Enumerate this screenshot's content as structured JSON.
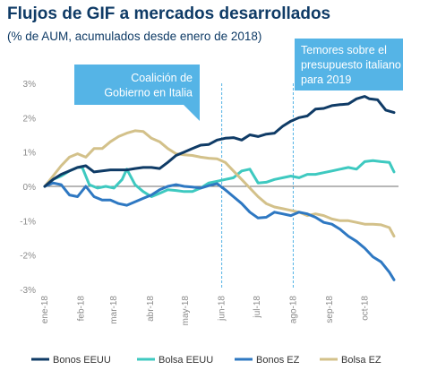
{
  "title": "Flujos de GIF a mercados desarrollados",
  "subtitle": "(% de AUM, acumulados desde enero de 2018)",
  "colors": {
    "bonos_eeuu": "#0f3b66",
    "bolsa_eeuu": "#3ec9c0",
    "bonos_ez": "#2e78c2",
    "bolsa_ez": "#d3c18a",
    "annotation": "#55b4e6",
    "axis_text": "#8a8a8a",
    "title": "#0f3b66"
  },
  "chart_data": {
    "type": "line",
    "title": "Flujos de GIF a mercados desarrollados",
    "subtitle": "(% de AUM, acumulados desde enero de 2018)",
    "xlabel": "",
    "ylabel": "",
    "ylim": [
      -3,
      3
    ],
    "y_ticks": [
      "3%",
      "2%",
      "1%",
      "0%",
      "-1%",
      "-2%",
      "-3%"
    ],
    "y_tick_values": [
      3,
      2,
      1,
      0,
      -1,
      -2,
      -3
    ],
    "categories": [
      "ene-18",
      "feb-18",
      "mar-18",
      "abr-18",
      "may-18",
      "jun-18",
      "jul-18",
      "ago-18",
      "sep-18",
      "oct-18"
    ],
    "x_start": "2018-01-01",
    "x_end": "2018-10-26",
    "grid": false,
    "legend_position": "bottom",
    "series": [
      {
        "name": "Bonos EEUU",
        "color_key": "bonos_eeuu",
        "points": [
          [
            "2018-01-01",
            0.0
          ],
          [
            "2018-01-08",
            0.2
          ],
          [
            "2018-01-15",
            0.35
          ],
          [
            "2018-01-22",
            0.45
          ],
          [
            "2018-01-29",
            0.55
          ],
          [
            "2018-02-05",
            0.6
          ],
          [
            "2018-02-12",
            0.42
          ],
          [
            "2018-02-19",
            0.45
          ],
          [
            "2018-02-26",
            0.48
          ],
          [
            "2018-03-05",
            0.48
          ],
          [
            "2018-03-12",
            0.48
          ],
          [
            "2018-03-19",
            0.52
          ],
          [
            "2018-03-26",
            0.55
          ],
          [
            "2018-04-02",
            0.55
          ],
          [
            "2018-04-09",
            0.52
          ],
          [
            "2018-04-16",
            0.7
          ],
          [
            "2018-04-23",
            0.9
          ],
          [
            "2018-04-30",
            1.0
          ],
          [
            "2018-05-07",
            1.1
          ],
          [
            "2018-05-14",
            1.2
          ],
          [
            "2018-05-21",
            1.22
          ],
          [
            "2018-05-28",
            1.35
          ],
          [
            "2018-06-04",
            1.4
          ],
          [
            "2018-06-11",
            1.42
          ],
          [
            "2018-06-18",
            1.35
          ],
          [
            "2018-06-25",
            1.5
          ],
          [
            "2018-07-02",
            1.45
          ],
          [
            "2018-07-09",
            1.52
          ],
          [
            "2018-07-16",
            1.55
          ],
          [
            "2018-07-23",
            1.75
          ],
          [
            "2018-07-30",
            1.9
          ],
          [
            "2018-08-06",
            2.0
          ],
          [
            "2018-08-13",
            2.05
          ],
          [
            "2018-08-20",
            2.25
          ],
          [
            "2018-08-27",
            2.27
          ],
          [
            "2018-09-03",
            2.35
          ],
          [
            "2018-09-10",
            2.38
          ],
          [
            "2018-09-17",
            2.4
          ],
          [
            "2018-09-24",
            2.55
          ],
          [
            "2018-10-01",
            2.62
          ],
          [
            "2018-10-05",
            2.55
          ],
          [
            "2018-10-12",
            2.52
          ],
          [
            "2018-10-19",
            2.22
          ],
          [
            "2018-10-26",
            2.15
          ]
        ]
      },
      {
        "name": "Bolsa EEUU",
        "color_key": "bolsa_eeuu",
        "points": [
          [
            "2018-01-01",
            0.0
          ],
          [
            "2018-01-08",
            0.2
          ],
          [
            "2018-01-15",
            0.3
          ],
          [
            "2018-01-22",
            0.45
          ],
          [
            "2018-01-29",
            0.55
          ],
          [
            "2018-02-02",
            0.55
          ],
          [
            "2018-02-08",
            0.05
          ],
          [
            "2018-02-15",
            -0.05
          ],
          [
            "2018-02-22",
            0.0
          ],
          [
            "2018-03-01",
            -0.05
          ],
          [
            "2018-03-08",
            0.2
          ],
          [
            "2018-03-12",
            0.5
          ],
          [
            "2018-03-19",
            0.05
          ],
          [
            "2018-03-26",
            -0.15
          ],
          [
            "2018-04-02",
            -0.3
          ],
          [
            "2018-04-09",
            -0.2
          ],
          [
            "2018-04-16",
            -0.1
          ],
          [
            "2018-04-23",
            -0.12
          ],
          [
            "2018-04-30",
            -0.15
          ],
          [
            "2018-05-07",
            -0.15
          ],
          [
            "2018-05-14",
            -0.05
          ],
          [
            "2018-05-21",
            0.1
          ],
          [
            "2018-05-28",
            0.15
          ],
          [
            "2018-06-04",
            0.2
          ],
          [
            "2018-06-11",
            0.25
          ],
          [
            "2018-06-18",
            0.45
          ],
          [
            "2018-06-25",
            0.5
          ],
          [
            "2018-07-02",
            0.1
          ],
          [
            "2018-07-09",
            0.12
          ],
          [
            "2018-07-16",
            0.2
          ],
          [
            "2018-07-23",
            0.25
          ],
          [
            "2018-07-30",
            0.3
          ],
          [
            "2018-08-06",
            0.25
          ],
          [
            "2018-08-13",
            0.35
          ],
          [
            "2018-08-20",
            0.35
          ],
          [
            "2018-08-27",
            0.4
          ],
          [
            "2018-09-03",
            0.45
          ],
          [
            "2018-09-10",
            0.5
          ],
          [
            "2018-09-17",
            0.55
          ],
          [
            "2018-09-24",
            0.5
          ],
          [
            "2018-10-01",
            0.72
          ],
          [
            "2018-10-08",
            0.75
          ],
          [
            "2018-10-15",
            0.72
          ],
          [
            "2018-10-22",
            0.7
          ],
          [
            "2018-10-26",
            0.42
          ]
        ]
      },
      {
        "name": "Bonos EZ",
        "color_key": "bonos_ez",
        "points": [
          [
            "2018-01-01",
            0.0
          ],
          [
            "2018-01-08",
            0.1
          ],
          [
            "2018-01-15",
            0.05
          ],
          [
            "2018-01-22",
            -0.25
          ],
          [
            "2018-01-29",
            -0.3
          ],
          [
            "2018-02-05",
            0.0
          ],
          [
            "2018-02-12",
            -0.3
          ],
          [
            "2018-02-19",
            -0.4
          ],
          [
            "2018-02-26",
            -0.4
          ],
          [
            "2018-03-05",
            -0.5
          ],
          [
            "2018-03-12",
            -0.55
          ],
          [
            "2018-03-19",
            -0.45
          ],
          [
            "2018-03-26",
            -0.35
          ],
          [
            "2018-04-02",
            -0.25
          ],
          [
            "2018-04-09",
            -0.1
          ],
          [
            "2018-04-16",
            0.0
          ],
          [
            "2018-04-23",
            0.05
          ],
          [
            "2018-04-30",
            0.0
          ],
          [
            "2018-05-07",
            -0.02
          ],
          [
            "2018-05-14",
            -0.05
          ],
          [
            "2018-05-21",
            0.02
          ],
          [
            "2018-05-28",
            0.08
          ],
          [
            "2018-06-04",
            -0.1
          ],
          [
            "2018-06-11",
            -0.3
          ],
          [
            "2018-06-18",
            -0.5
          ],
          [
            "2018-06-25",
            -0.75
          ],
          [
            "2018-07-02",
            -0.92
          ],
          [
            "2018-07-09",
            -0.9
          ],
          [
            "2018-07-16",
            -0.75
          ],
          [
            "2018-07-23",
            -0.8
          ],
          [
            "2018-07-30",
            -0.85
          ],
          [
            "2018-08-06",
            -0.75
          ],
          [
            "2018-08-13",
            -0.8
          ],
          [
            "2018-08-20",
            -0.9
          ],
          [
            "2018-08-27",
            -1.05
          ],
          [
            "2018-09-03",
            -1.1
          ],
          [
            "2018-09-10",
            -1.25
          ],
          [
            "2018-09-17",
            -1.45
          ],
          [
            "2018-09-24",
            -1.6
          ],
          [
            "2018-10-01",
            -1.8
          ],
          [
            "2018-10-08",
            -2.05
          ],
          [
            "2018-10-15",
            -2.2
          ],
          [
            "2018-10-22",
            -2.5
          ],
          [
            "2018-10-26",
            -2.72
          ]
        ]
      },
      {
        "name": "Bolsa EZ",
        "color_key": "bolsa_ez",
        "points": [
          [
            "2018-01-01",
            0.0
          ],
          [
            "2018-01-08",
            0.3
          ],
          [
            "2018-01-15",
            0.6
          ],
          [
            "2018-01-22",
            0.85
          ],
          [
            "2018-01-29",
            0.95
          ],
          [
            "2018-02-05",
            0.85
          ],
          [
            "2018-02-12",
            1.1
          ],
          [
            "2018-02-19",
            1.1
          ],
          [
            "2018-02-26",
            1.3
          ],
          [
            "2018-03-05",
            1.45
          ],
          [
            "2018-03-12",
            1.55
          ],
          [
            "2018-03-19",
            1.62
          ],
          [
            "2018-03-26",
            1.6
          ],
          [
            "2018-04-02",
            1.4
          ],
          [
            "2018-04-09",
            1.3
          ],
          [
            "2018-04-16",
            1.1
          ],
          [
            "2018-04-23",
            0.95
          ],
          [
            "2018-04-30",
            0.92
          ],
          [
            "2018-05-07",
            0.9
          ],
          [
            "2018-05-14",
            0.85
          ],
          [
            "2018-05-21",
            0.82
          ],
          [
            "2018-05-28",
            0.8
          ],
          [
            "2018-06-04",
            0.7
          ],
          [
            "2018-06-11",
            0.45
          ],
          [
            "2018-06-18",
            0.2
          ],
          [
            "2018-06-25",
            -0.05
          ],
          [
            "2018-07-02",
            -0.3
          ],
          [
            "2018-07-09",
            -0.5
          ],
          [
            "2018-07-16",
            -0.6
          ],
          [
            "2018-07-23",
            -0.65
          ],
          [
            "2018-07-30",
            -0.7
          ],
          [
            "2018-08-06",
            -0.75
          ],
          [
            "2018-08-13",
            -0.85
          ],
          [
            "2018-08-20",
            -0.8
          ],
          [
            "2018-08-27",
            -0.85
          ],
          [
            "2018-09-03",
            -0.95
          ],
          [
            "2018-09-10",
            -1.0
          ],
          [
            "2018-09-17",
            -1.0
          ],
          [
            "2018-09-24",
            -1.05
          ],
          [
            "2018-10-01",
            -1.1
          ],
          [
            "2018-10-08",
            -1.1
          ],
          [
            "2018-10-15",
            -1.12
          ],
          [
            "2018-10-22",
            -1.2
          ],
          [
            "2018-10-26",
            -1.45
          ]
        ]
      }
    ],
    "annotations": [
      {
        "text_lines": [
          "Coalición de",
          "Gobierno en Italia"
        ],
        "date": "2018-06-01",
        "pointer": "down-right"
      },
      {
        "text_lines": [
          "Temores sobre el",
          "presupuesto italiano",
          "para 2019"
        ],
        "date": "2018-08-01",
        "pointer": "down-left"
      }
    ]
  }
}
